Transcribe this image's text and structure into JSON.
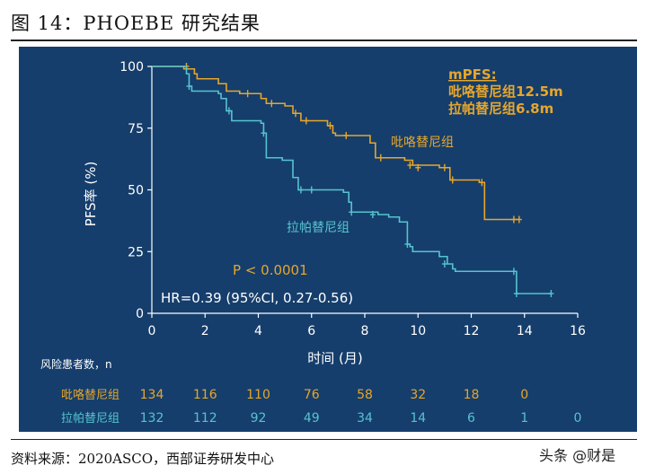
{
  "figure_title": "图 14：PHOEBE 研究结果",
  "source_text": "资料来源：2020ASCO，西部证券研发中心",
  "watermark": "头条 @财是",
  "colors": {
    "panel_bg": "#153e6c",
    "pyrotinib": "#e7a62b",
    "lapatinib": "#57c3cf",
    "axis": "#ffffff"
  },
  "chart_data": {
    "type": "line",
    "subtype": "kaplan-meier",
    "xlabel": "时间 (月)",
    "ylabel": "PFS率 (%)",
    "xlim": [
      0,
      16
    ],
    "ylim": [
      0,
      100
    ],
    "xticks": [
      0,
      2,
      4,
      6,
      8,
      10,
      12,
      14,
      16
    ],
    "yticks": [
      0,
      25,
      50,
      75,
      100
    ],
    "grid": false,
    "annotations": {
      "mpfs_title": "mPFS:",
      "mpfs_pyrotinib": "吡咯替尼组12.5m",
      "mpfs_lapatinib": "拉帕替尼组6.8m",
      "p_value": "P < 0.0001",
      "hr": "HR=0.39 (95%CI, 0.27-0.56)"
    },
    "series": [
      {
        "name": "吡咯替尼组",
        "color": "#e7a62b",
        "steps": [
          [
            0,
            100
          ],
          [
            0.8,
            100
          ],
          [
            1.2,
            99
          ],
          [
            1.6,
            97
          ],
          [
            1.7,
            95
          ],
          [
            2.5,
            93
          ],
          [
            2.8,
            90
          ],
          [
            3.3,
            89
          ],
          [
            4.1,
            87
          ],
          [
            4.3,
            85
          ],
          [
            5.0,
            84
          ],
          [
            5.3,
            81
          ],
          [
            5.6,
            78
          ],
          [
            6.6,
            76
          ],
          [
            6.8,
            73
          ],
          [
            6.9,
            72
          ],
          [
            7.1,
            72
          ],
          [
            8.2,
            69
          ],
          [
            8.4,
            63
          ],
          [
            9.5,
            62
          ],
          [
            9.8,
            60
          ],
          [
            10.8,
            59
          ],
          [
            11.2,
            54
          ],
          [
            12.3,
            53
          ],
          [
            12.5,
            38
          ],
          [
            13.8,
            38
          ]
        ],
        "censors": [
          [
            1.3,
            100
          ],
          [
            3.6,
            89
          ],
          [
            4.5,
            85
          ],
          [
            5.4,
            81
          ],
          [
            5.8,
            78
          ],
          [
            6.7,
            76
          ],
          [
            7.3,
            72
          ],
          [
            8.6,
            63
          ],
          [
            9.7,
            60
          ],
          [
            10.0,
            59
          ],
          [
            11.0,
            59
          ],
          [
            11.3,
            54
          ],
          [
            12.4,
            53
          ],
          [
            13.6,
            38
          ],
          [
            13.8,
            38
          ]
        ]
      },
      {
        "name": "拉帕替尼组",
        "color": "#57c3cf",
        "steps": [
          [
            0,
            100
          ],
          [
            1.1,
            100
          ],
          [
            1.3,
            97
          ],
          [
            1.4,
            92
          ],
          [
            1.5,
            90
          ],
          [
            2.5,
            89
          ],
          [
            2.6,
            87
          ],
          [
            2.8,
            82
          ],
          [
            3.0,
            78
          ],
          [
            4.1,
            77
          ],
          [
            4.2,
            73
          ],
          [
            4.3,
            63
          ],
          [
            4.9,
            62
          ],
          [
            5.3,
            55
          ],
          [
            5.5,
            50
          ],
          [
            6.5,
            50
          ],
          [
            7.2,
            49
          ],
          [
            7.4,
            45
          ],
          [
            7.5,
            41
          ],
          [
            8.5,
            40
          ],
          [
            8.9,
            39
          ],
          [
            9.3,
            37
          ],
          [
            9.6,
            28
          ],
          [
            9.7,
            27
          ],
          [
            9.8,
            25
          ],
          [
            10.8,
            23
          ],
          [
            11.1,
            20
          ],
          [
            11.3,
            18
          ],
          [
            11.4,
            17
          ],
          [
            13.6,
            17
          ],
          [
            13.7,
            8
          ],
          [
            15.0,
            8
          ]
        ],
        "censors": [
          [
            1.4,
            92
          ],
          [
            2.9,
            82
          ],
          [
            4.2,
            73
          ],
          [
            5.6,
            50
          ],
          [
            6.0,
            50
          ],
          [
            7.5,
            41
          ],
          [
            8.3,
            40
          ],
          [
            9.6,
            28
          ],
          [
            11.0,
            20
          ],
          [
            13.6,
            17
          ],
          [
            13.7,
            8
          ],
          [
            15.0,
            8
          ]
        ]
      }
    ],
    "risk_table": {
      "label": "风险患者数，n",
      "rows": [
        {
          "name": "吡咯替尼组",
          "color": "#e7a62b",
          "values": [
            134,
            116,
            110,
            76,
            58,
            32,
            18,
            0
          ]
        },
        {
          "name": "拉帕替尼组",
          "color": "#57c3cf",
          "values": [
            132,
            112,
            92,
            49,
            34,
            14,
            6,
            1,
            0
          ]
        }
      ]
    }
  }
}
